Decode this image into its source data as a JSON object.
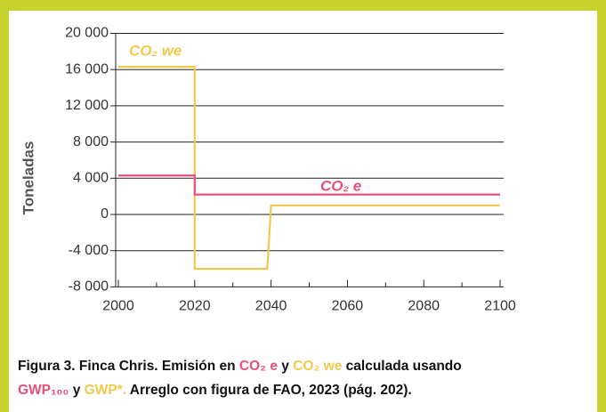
{
  "chart_data": {
    "type": "line",
    "ylabel": "Toneladas",
    "xlim": [
      2000,
      2100
    ],
    "xticks": [
      2000,
      2020,
      2040,
      2060,
      2080,
      2100
    ],
    "xminorticks": [
      2010,
      2030,
      2050,
      2070,
      2090
    ],
    "ylim": [
      -8000,
      20000
    ],
    "yticks": [
      {
        "value": 20000,
        "label": "20 000"
      },
      {
        "value": 16000,
        "label": "16 000"
      },
      {
        "value": 12000,
        "label": "12 000"
      },
      {
        "value": 8000,
        "label": "8 000"
      },
      {
        "value": 4000,
        "label": "4 000"
      },
      {
        "value": 0,
        "label": "0"
      },
      {
        "value": -4000,
        "label": "-4 000"
      },
      {
        "value": -8000,
        "label": "-8 000"
      }
    ],
    "grid": true,
    "series": [
      {
        "name": "CO₂ we",
        "color": "#f2c94c",
        "x": [
          2000,
          2020,
          2020,
          2039,
          2040,
          2100
        ],
        "values": [
          16300,
          16300,
          -6000,
          -6000,
          1000,
          1000
        ]
      },
      {
        "name": "CO₂ e",
        "color": "#e8507a",
        "x": [
          2000,
          2020,
          2020,
          2100
        ],
        "values": [
          4300,
          4300,
          2200,
          2200
        ]
      }
    ],
    "caption": [
      [
        {
          "text": "Figura 3. Finca Chris. Emisión en ",
          "color": "#111111"
        },
        {
          "text": "CO₂ e",
          "color": "#e8507a"
        },
        {
          "text": " y  ",
          "color": "#111111"
        },
        {
          "text": "CO₂ we",
          "color": "#f2c94c"
        },
        {
          "text": " calculada usando",
          "color": "#111111"
        }
      ],
      [
        {
          "text": "GWP₁₀₀",
          "color": "#e8507a"
        },
        {
          "text": " y ",
          "color": "#111111"
        },
        {
          "text": "GWP*.",
          "color": "#f2c94c"
        },
        {
          "text": " Arreglo con figura de FAO, 2023 (pág. 202).",
          "color": "#111111"
        }
      ]
    ]
  }
}
